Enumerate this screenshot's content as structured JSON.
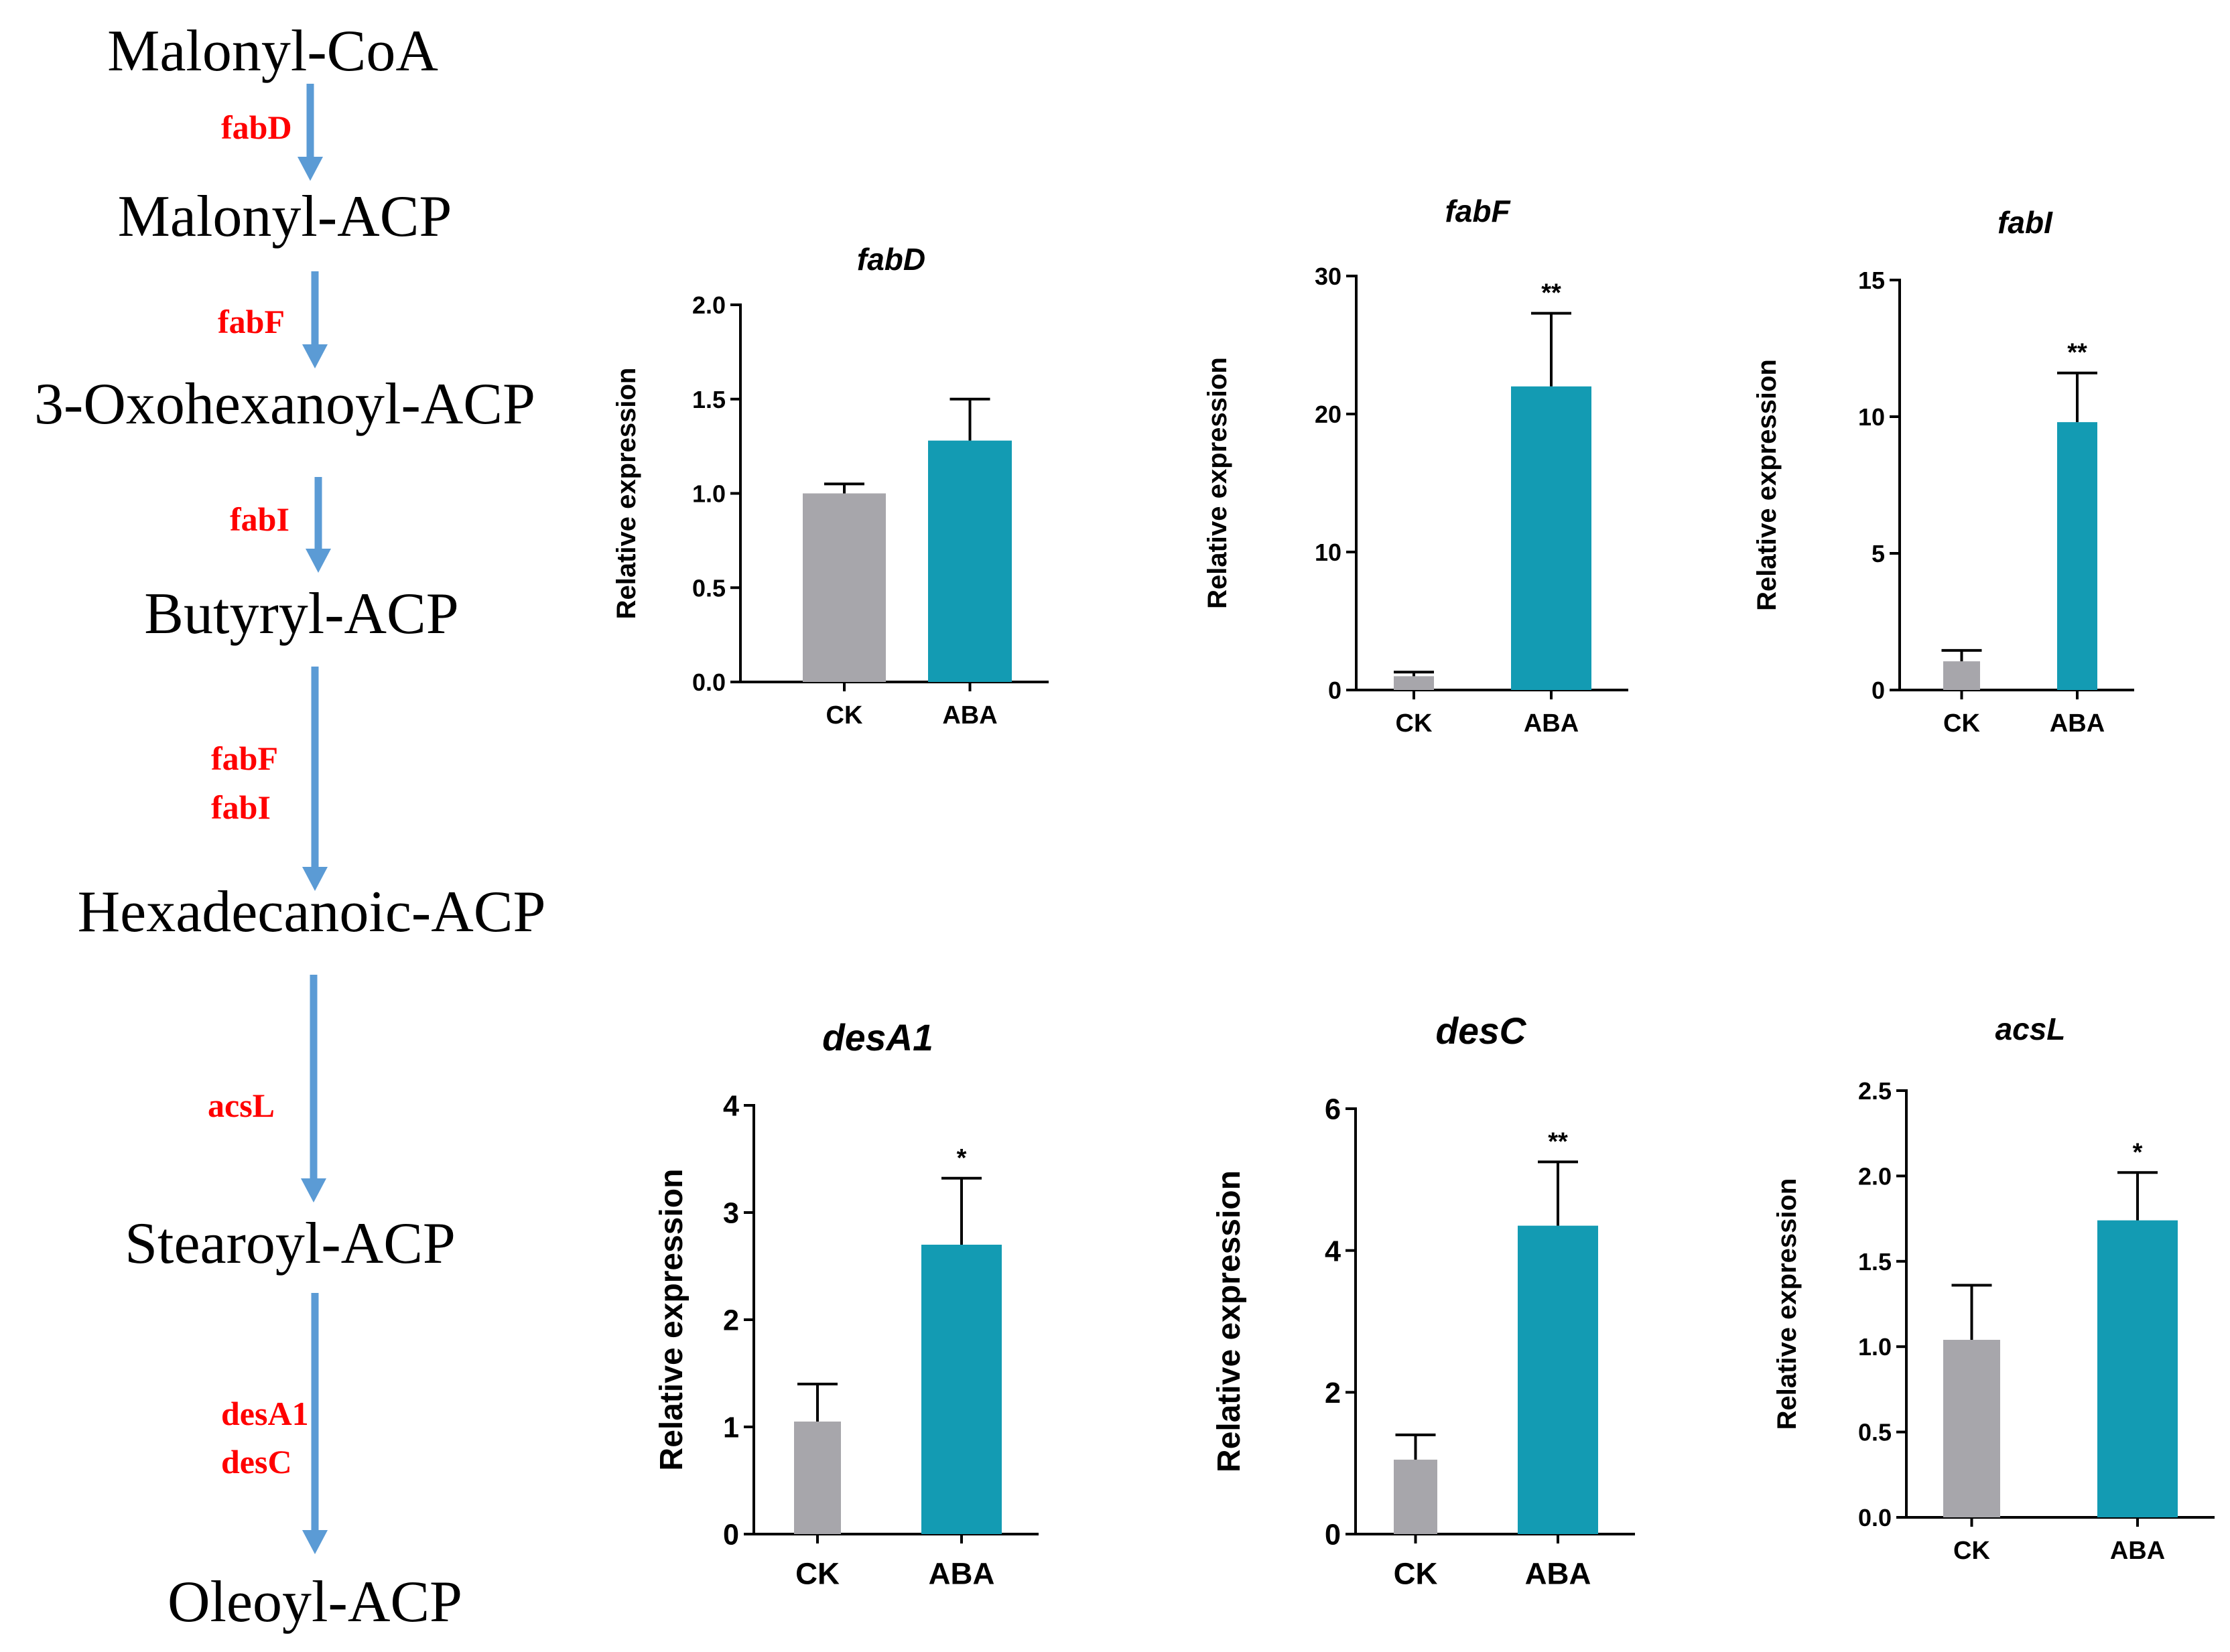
{
  "pathway": {
    "metabolites": [
      "Malonyl-CoA",
      "Malonyl-ACP",
      "3-Oxohexanoyl-ACP",
      "Butyryl-ACP",
      "Hexadecanoic-ACP",
      "Stearoyl-ACP",
      "Oleoyl-ACP"
    ],
    "steps": [
      {
        "enzymes": [
          "fabD"
        ]
      },
      {
        "enzymes": [
          "fabF"
        ]
      },
      {
        "enzymes": [
          "fabI"
        ]
      },
      {
        "enzymes": [
          "fabF",
          "fabI"
        ]
      },
      {
        "enzymes": [
          "acsL"
        ]
      },
      {
        "enzymes": [
          "desA1",
          "desC"
        ]
      }
    ],
    "arrow_color": "#5b9bd5",
    "enzyme_color": "#ff0000"
  },
  "colors": {
    "ck": "#a7a6ab",
    "aba": "#139bb3",
    "axis": "#000000"
  },
  "chart_data": [
    {
      "type": "bar",
      "title": "fabD",
      "ylabel": "Relative expression",
      "categories": [
        "CK",
        "ABA"
      ],
      "values": [
        1.0,
        1.28
      ],
      "errors": [
        0.05,
        0.22
      ],
      "significance": [
        "",
        ""
      ],
      "ylim": [
        0,
        2.0
      ],
      "yticks": [
        "0.0",
        "0.5",
        "1.0",
        "1.5",
        "2.0"
      ]
    },
    {
      "type": "bar",
      "title": "fabF",
      "ylabel": "Relative expression",
      "categories": [
        "CK",
        "ABA"
      ],
      "values": [
        1.0,
        22.0
      ],
      "errors": [
        0.3,
        5.3
      ],
      "significance": [
        "",
        "**"
      ],
      "ylim": [
        0,
        30
      ],
      "yticks": [
        "0",
        "10",
        "20",
        "30"
      ]
    },
    {
      "type": "bar",
      "title": "fabI",
      "ylabel": "Relative expression",
      "categories": [
        "CK",
        "ABA"
      ],
      "values": [
        1.05,
        9.8
      ],
      "errors": [
        0.4,
        1.8
      ],
      "significance": [
        "",
        "**"
      ],
      "ylim": [
        0,
        15
      ],
      "yticks": [
        "0",
        "5",
        "10",
        "15"
      ]
    },
    {
      "type": "bar",
      "title": "desA1",
      "ylabel": "Relative expression",
      "categories": [
        "CK",
        "ABA"
      ],
      "values": [
        1.05,
        2.7
      ],
      "errors": [
        0.35,
        0.62
      ],
      "significance": [
        "",
        "*"
      ],
      "ylim": [
        0,
        4
      ],
      "yticks": [
        "0",
        "1",
        "2",
        "3",
        "4"
      ]
    },
    {
      "type": "bar",
      "title": "desC",
      "ylabel": "Relative expression",
      "categories": [
        "CK",
        "ABA"
      ],
      "values": [
        1.05,
        4.35
      ],
      "errors": [
        0.35,
        0.9
      ],
      "significance": [
        "",
        "**"
      ],
      "ylim": [
        0,
        6
      ],
      "yticks": [
        "0",
        "2",
        "4",
        "6"
      ]
    },
    {
      "type": "bar",
      "title": "acsL",
      "ylabel": "Relative expression",
      "categories": [
        "CK",
        "ABA"
      ],
      "values": [
        1.04,
        1.74
      ],
      "errors": [
        0.32,
        0.28
      ],
      "significance": [
        "",
        "*"
      ],
      "ylim": [
        0,
        2.5
      ],
      "yticks": [
        "0.0",
        "0.5",
        "1.0",
        "1.5",
        "2.0",
        "2.5"
      ]
    }
  ]
}
